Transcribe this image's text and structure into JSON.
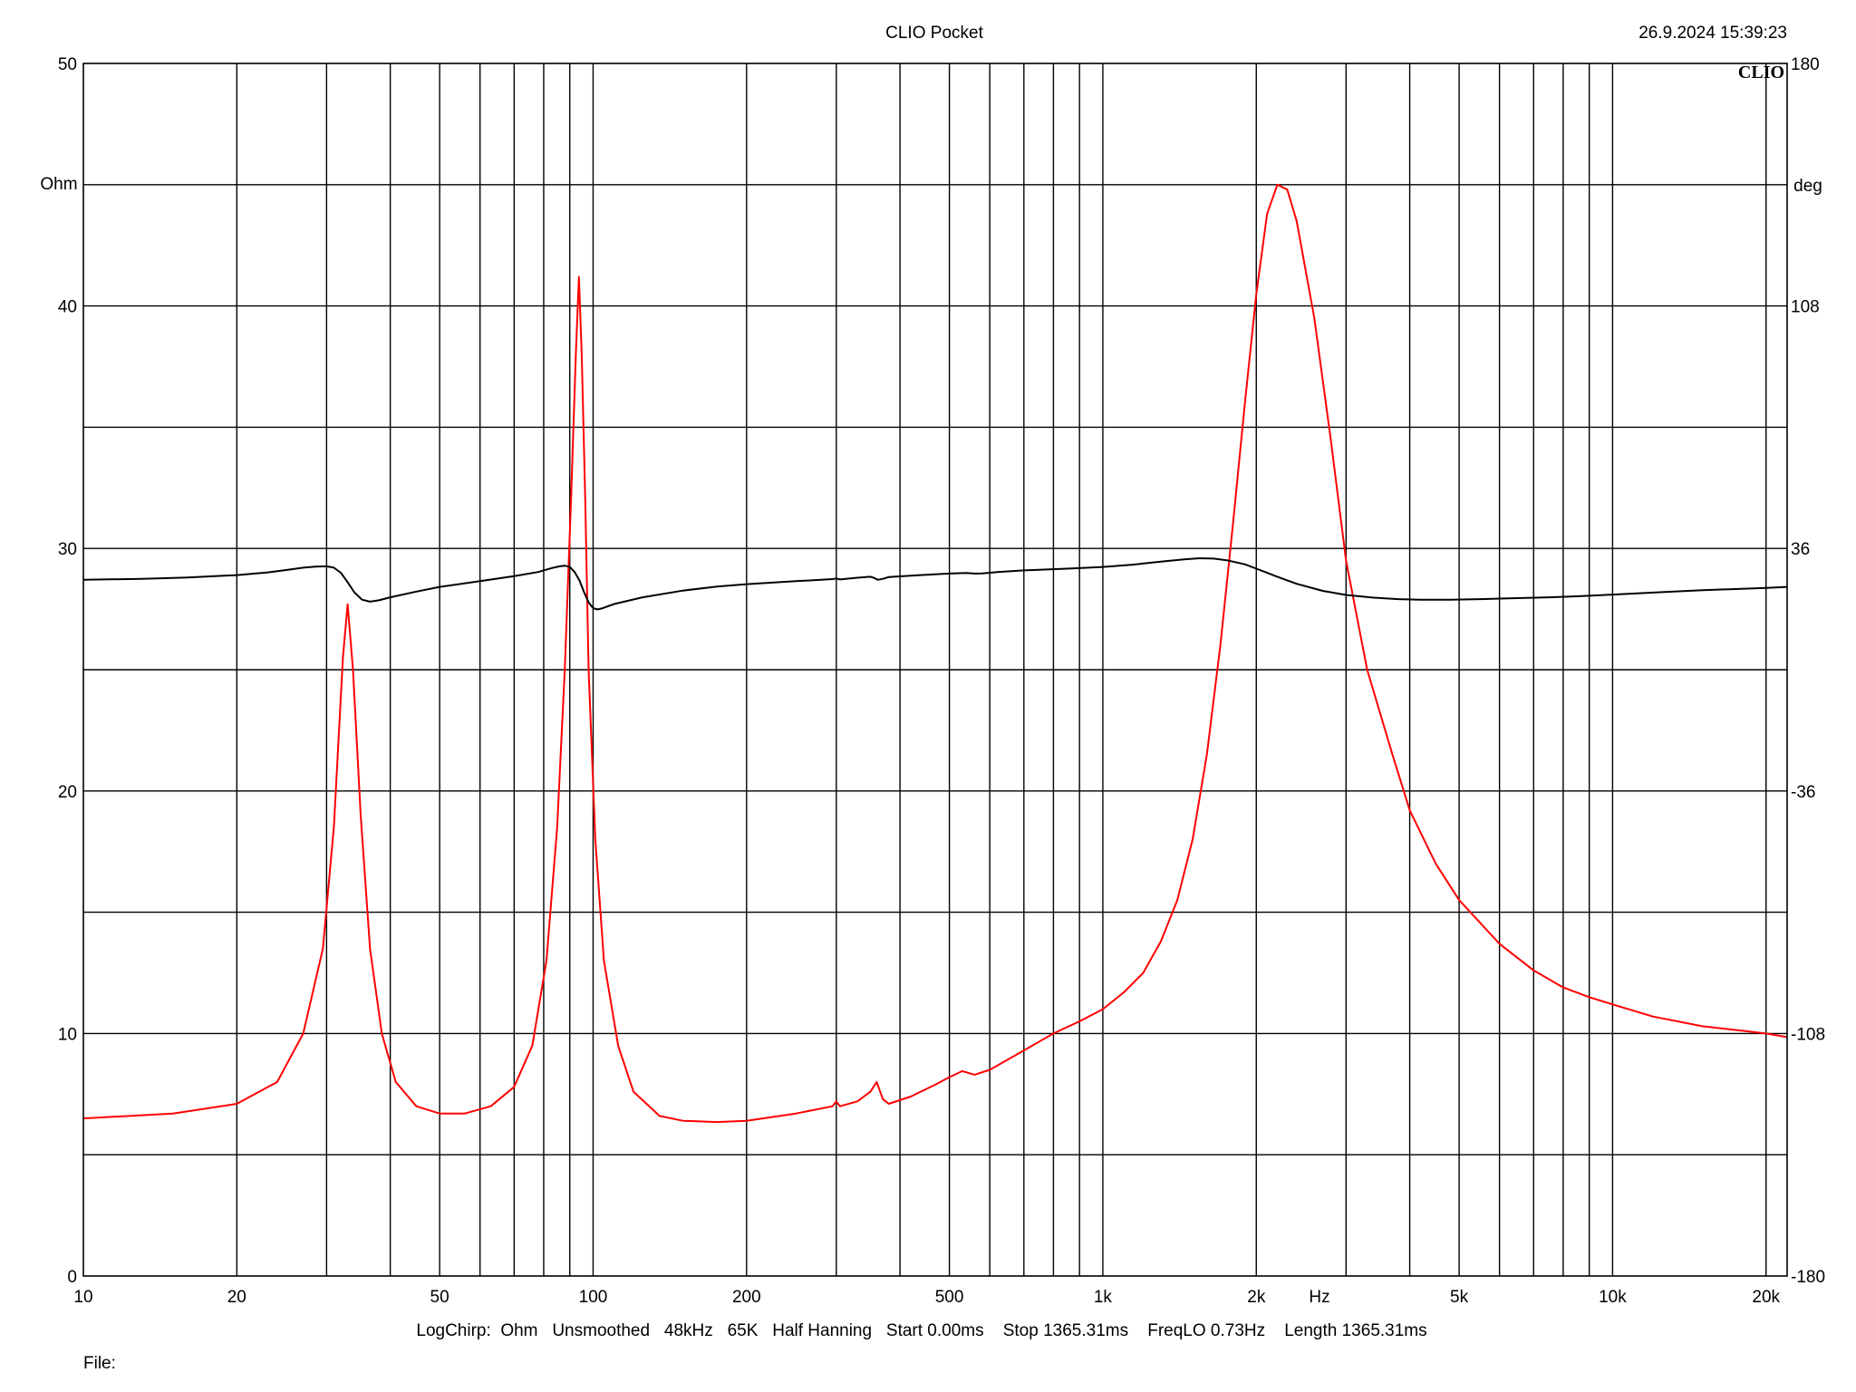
{
  "header": {
    "title": "CLIO Pocket",
    "datetime": "26.9.2024 15:39:23",
    "brand": "CLIO"
  },
  "footer": {
    "settings": "LogChirp:  Ohm   Unsmoothed   48kHz   65K   Half Hanning   Start 0.00ms    Stop 1365.31ms    FreqLO 0.73Hz    Length 1365.31ms",
    "file_label": "File:"
  },
  "chart_data": {
    "type": "line",
    "x_scale": "log",
    "xlim": [
      10,
      22000
    ],
    "x_unit": "Hz",
    "x_ticks": [
      {
        "v": 10,
        "label": "10"
      },
      {
        "v": 20,
        "label": "20"
      },
      {
        "v": 50,
        "label": "50"
      },
      {
        "v": 100,
        "label": "100"
      },
      {
        "v": 200,
        "label": "200"
      },
      {
        "v": 500,
        "label": "500"
      },
      {
        "v": 1000,
        "label": "1k"
      },
      {
        "v": 2000,
        "label": "2k"
      },
      {
        "v": 5000,
        "label": "5k"
      },
      {
        "v": 10000,
        "label": "10k"
      },
      {
        "v": 20000,
        "label": "20k"
      }
    ],
    "x_minor_grid": [
      30,
      40,
      60,
      70,
      80,
      90,
      300,
      400,
      600,
      700,
      800,
      900,
      3000,
      4000,
      6000,
      7000,
      8000,
      9000
    ],
    "y_left": {
      "unit": "Ohm",
      "lim": [
        0,
        50
      ],
      "ticks": [
        0,
        10,
        20,
        30,
        40,
        50
      ]
    },
    "y_right": {
      "unit": "deg",
      "lim": [
        -180,
        180
      ],
      "ticks": [
        -180,
        -108,
        -36,
        36,
        108,
        180
      ]
    },
    "y_grid_step": 5,
    "grid": true,
    "series": [
      {
        "axis": "left",
        "color": "#ff0000",
        "points": [
          [
            10,
            6.5
          ],
          [
            15,
            6.7
          ],
          [
            20,
            7.1
          ],
          [
            24,
            8.0
          ],
          [
            27,
            10.0
          ],
          [
            29.5,
            13.5
          ],
          [
            31,
            18.5
          ],
          [
            32.3,
            25.5
          ],
          [
            33,
            27.7
          ],
          [
            33.8,
            25.0
          ],
          [
            35,
            19.0
          ],
          [
            36.5,
            13.5
          ],
          [
            38.5,
            10.0
          ],
          [
            41,
            8.0
          ],
          [
            45,
            7.0
          ],
          [
            50,
            6.7
          ],
          [
            56,
            6.7
          ],
          [
            63,
            7.0
          ],
          [
            70,
            7.8
          ],
          [
            76,
            9.5
          ],
          [
            81,
            13.0
          ],
          [
            85,
            18.5
          ],
          [
            88,
            25.0
          ],
          [
            90.5,
            32.0
          ],
          [
            92.5,
            38.0
          ],
          [
            93.8,
            41.2
          ],
          [
            95,
            38.0
          ],
          [
            96.5,
            32.0
          ],
          [
            98,
            25.0
          ],
          [
            101,
            18.0
          ],
          [
            105,
            13.0
          ],
          [
            112,
            9.5
          ],
          [
            120,
            7.6
          ],
          [
            135,
            6.6
          ],
          [
            150,
            6.4
          ],
          [
            175,
            6.35
          ],
          [
            200,
            6.4
          ],
          [
            250,
            6.7
          ],
          [
            295,
            7.0
          ],
          [
            300,
            7.2
          ],
          [
            305,
            7.0
          ],
          [
            330,
            7.2
          ],
          [
            350,
            7.6
          ],
          [
            360,
            8.0
          ],
          [
            370,
            7.3
          ],
          [
            380,
            7.1
          ],
          [
            420,
            7.4
          ],
          [
            470,
            7.9
          ],
          [
            500,
            8.2
          ],
          [
            530,
            8.45
          ],
          [
            560,
            8.3
          ],
          [
            600,
            8.5
          ],
          [
            700,
            9.3
          ],
          [
            800,
            10.0
          ],
          [
            900,
            10.5
          ],
          [
            1000,
            11.0
          ],
          [
            1100,
            11.7
          ],
          [
            1200,
            12.5
          ],
          [
            1300,
            13.8
          ],
          [
            1400,
            15.5
          ],
          [
            1500,
            18.0
          ],
          [
            1600,
            21.5
          ],
          [
            1700,
            26.0
          ],
          [
            1800,
            31.0
          ],
          [
            1900,
            36.0
          ],
          [
            2000,
            40.5
          ],
          [
            2100,
            43.8
          ],
          [
            2200,
            45.0
          ],
          [
            2300,
            44.8
          ],
          [
            2400,
            43.5
          ],
          [
            2600,
            39.5
          ],
          [
            2800,
            34.5
          ],
          [
            3000,
            29.5
          ],
          [
            3300,
            25.0
          ],
          [
            3700,
            21.5
          ],
          [
            4000,
            19.2
          ],
          [
            4500,
            17.0
          ],
          [
            5000,
            15.5
          ],
          [
            6000,
            13.7
          ],
          [
            7000,
            12.6
          ],
          [
            8000,
            11.9
          ],
          [
            9000,
            11.5
          ],
          [
            10000,
            11.2
          ],
          [
            12000,
            10.7
          ],
          [
            15000,
            10.3
          ],
          [
            20000,
            10.0
          ],
          [
            22000,
            9.85
          ]
        ]
      },
      {
        "axis": "right",
        "color": "#000000",
        "points": [
          [
            10,
            26.7
          ],
          [
            13,
            27.0
          ],
          [
            16,
            27.4
          ],
          [
            20,
            28.1
          ],
          [
            23,
            28.9
          ],
          [
            25,
            29.6
          ],
          [
            27,
            30.3
          ],
          [
            28.5,
            30.6
          ],
          [
            30,
            30.7
          ],
          [
            31,
            30.3
          ],
          [
            32,
            28.8
          ],
          [
            33,
            26.0
          ],
          [
            34,
            23.0
          ],
          [
            35.2,
            20.8
          ],
          [
            36.5,
            20.2
          ],
          [
            38,
            20.6
          ],
          [
            40,
            21.5
          ],
          [
            45,
            23.2
          ],
          [
            50,
            24.6
          ],
          [
            60,
            26.3
          ],
          [
            70,
            27.8
          ],
          [
            78,
            29.0
          ],
          [
            83,
            30.2
          ],
          [
            86,
            30.7
          ],
          [
            88,
            30.9
          ],
          [
            90,
            30.5
          ],
          [
            92,
            29.0
          ],
          [
            94,
            26.5
          ],
          [
            96,
            23.0
          ],
          [
            98,
            20.0
          ],
          [
            100,
            18.3
          ],
          [
            102,
            17.9
          ],
          [
            104,
            18.2
          ],
          [
            110,
            19.5
          ],
          [
            125,
            21.5
          ],
          [
            150,
            23.5
          ],
          [
            175,
            24.7
          ],
          [
            200,
            25.4
          ],
          [
            250,
            26.3
          ],
          [
            295,
            26.9
          ],
          [
            300,
            27.1
          ],
          [
            305,
            26.8
          ],
          [
            330,
            27.3
          ],
          [
            350,
            27.6
          ],
          [
            355,
            27.3
          ],
          [
            362,
            26.7
          ],
          [
            370,
            27.0
          ],
          [
            380,
            27.5
          ],
          [
            450,
            28.2
          ],
          [
            500,
            28.55
          ],
          [
            540,
            28.7
          ],
          [
            560,
            28.55
          ],
          [
            580,
            28.6
          ],
          [
            620,
            29.0
          ],
          [
            700,
            29.5
          ],
          [
            850,
            30.0
          ],
          [
            1000,
            30.5
          ],
          [
            1150,
            31.2
          ],
          [
            1300,
            32.1
          ],
          [
            1450,
            32.8
          ],
          [
            1550,
            33.1
          ],
          [
            1650,
            33.0
          ],
          [
            1750,
            32.5
          ],
          [
            1900,
            31.3
          ],
          [
            2000,
            30.0
          ],
          [
            2200,
            27.6
          ],
          [
            2400,
            25.5
          ],
          [
            2700,
            23.4
          ],
          [
            3000,
            22.2
          ],
          [
            3400,
            21.4
          ],
          [
            3800,
            20.95
          ],
          [
            4200,
            20.8
          ],
          [
            4800,
            20.8
          ],
          [
            5500,
            20.95
          ],
          [
            6500,
            21.25
          ],
          [
            7500,
            21.5
          ],
          [
            8500,
            21.8
          ],
          [
            10000,
            22.3
          ],
          [
            12000,
            22.9
          ],
          [
            15000,
            23.6
          ],
          [
            20000,
            24.3
          ],
          [
            22000,
            24.6
          ]
        ]
      }
    ]
  }
}
